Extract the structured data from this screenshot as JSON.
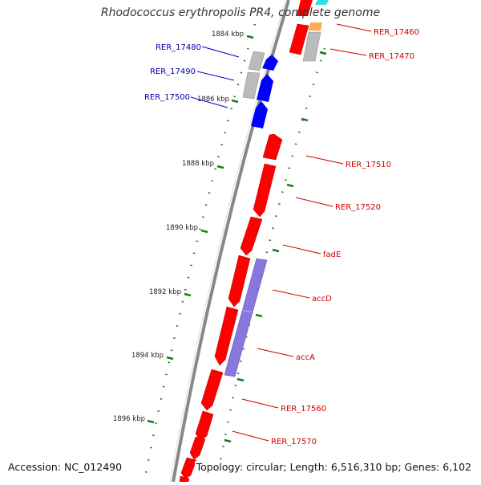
{
  "title": "Rhodococcus erythropolis PR4, complete genome",
  "footer": {
    "accession": "Accession: NC_012490",
    "info": "Topology: circular; Length: 6,516,310 bp; Genes: 6,102"
  },
  "colors": {
    "backbone": "#888888",
    "forward_gene": "#ff0000",
    "reverse_gene": "#0000ff",
    "grey_gene": "#bbbbbb",
    "operon": "#7b68d8",
    "tick": "#1a7a1a",
    "label_forward": "#cc0000",
    "label_reverse": "#0000aa",
    "cyan_gene": "#33dddd",
    "orange_gene": "#ffaa55"
  },
  "scale_labels": [
    "1884 kbp",
    "1886 kbp",
    "1888 kbp",
    "1890 kbp",
    "1892 kbp",
    "1894 kbp",
    "1896 kbp"
  ],
  "reverse_gene_labels": [
    "RER_17480",
    "RER_17490",
    "RER_17500"
  ],
  "forward_gene_labels": [
    "RER_17460",
    "RER_17470",
    "RER_17510",
    "RER_17520",
    "fadE",
    "accD",
    "accA",
    "RER_17560",
    "RER_17570"
  ]
}
